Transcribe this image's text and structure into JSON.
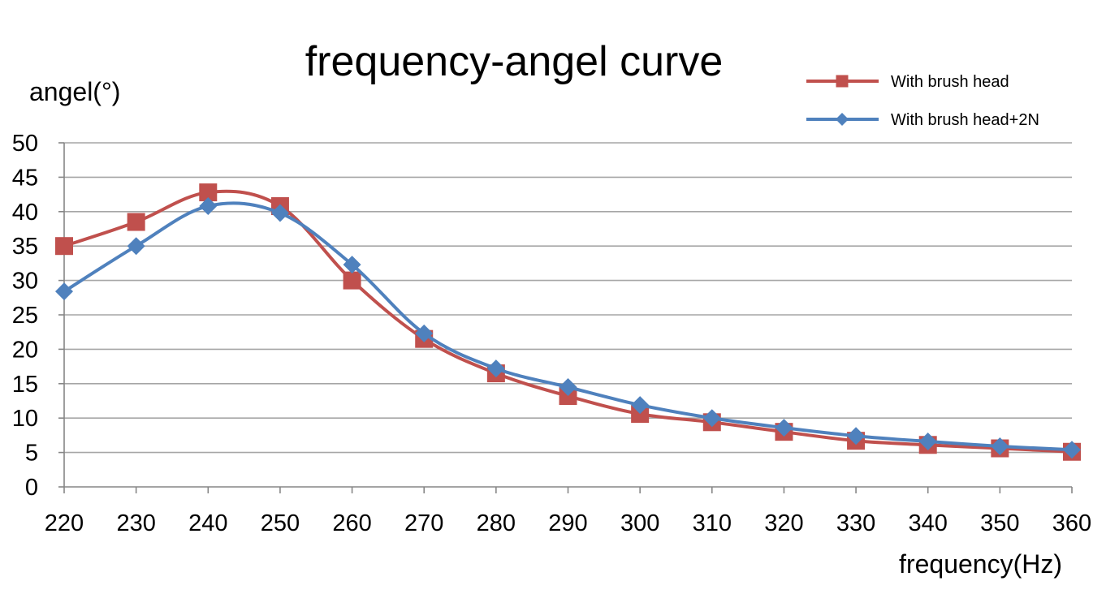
{
  "chart_data": {
    "type": "line",
    "title": "frequency-angel curve",
    "xlabel": "frequency(Hz)",
    "ylabel": "angel(°)",
    "x": [
      220,
      230,
      240,
      250,
      260,
      270,
      280,
      290,
      300,
      310,
      320,
      330,
      340,
      350,
      360
    ],
    "xlim": [
      220,
      360
    ],
    "ylim": [
      0,
      50
    ],
    "yticks": [
      0,
      5,
      10,
      15,
      20,
      25,
      30,
      35,
      40,
      45,
      50
    ],
    "grid": true,
    "legend_position": "top-right",
    "series": [
      {
        "name": "With brush head",
        "color": "#c0504d",
        "marker": "square",
        "values": [
          35,
          38.5,
          42.8,
          40.8,
          30,
          21.5,
          16.5,
          13.2,
          10.6,
          9.4,
          8.0,
          6.7,
          6.1,
          5.6,
          5.1
        ]
      },
      {
        "name": "With brush head+2N",
        "color": "#4f81bd",
        "marker": "diamond",
        "values": [
          28.4,
          35,
          40.8,
          39.8,
          32.3,
          22.3,
          17.2,
          14.5,
          11.9,
          10.0,
          8.6,
          7.4,
          6.6,
          5.9,
          5.4
        ]
      }
    ]
  }
}
